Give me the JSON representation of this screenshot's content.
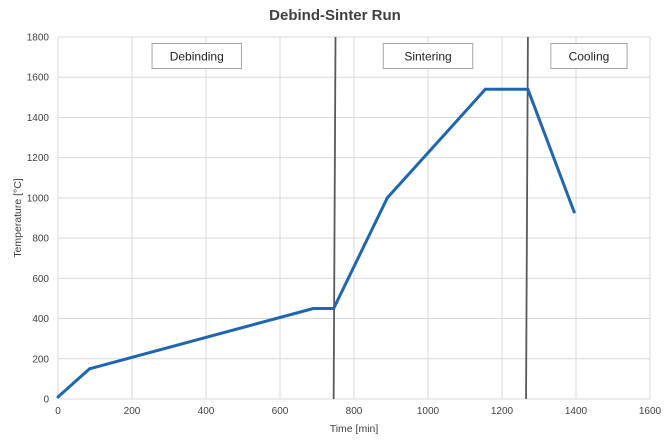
{
  "chart_data": {
    "type": "line",
    "title": "Debind-Sinter Run",
    "xlabel": "Time [min]",
    "ylabel": "Temperature [°C]",
    "xlim": [
      0,
      1600
    ],
    "ylim": [
      0,
      1800
    ],
    "x_ticks": [
      0,
      200,
      400,
      600,
      800,
      1000,
      1200,
      1400,
      1600
    ],
    "y_ticks": [
      0,
      200,
      400,
      600,
      800,
      1000,
      1200,
      1400,
      1600,
      1800
    ],
    "grid": true,
    "series": [
      {
        "x": [
          0,
          85,
          690,
          745,
          890,
          1155,
          1270,
          1395
        ],
        "y": [
          10,
          150,
          450,
          450,
          1000,
          1540,
          1540,
          930
        ],
        "color": "#1f66b0"
      }
    ],
    "vlines": [
      {
        "x1": 750,
        "x2": 745
      },
      {
        "x1": 1270,
        "x2": 1265
      }
    ],
    "phases": [
      {
        "label": "Debinding",
        "x": 375
      },
      {
        "label": "Sintering",
        "x": 1000
      },
      {
        "label": "Cooling",
        "x": 1435
      }
    ]
  }
}
